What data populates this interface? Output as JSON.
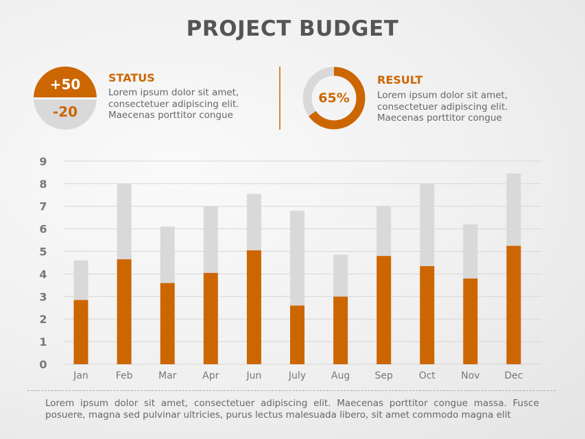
{
  "title": "PROJECT BUDGET",
  "status": {
    "positive": "+50",
    "negative": "-20",
    "heading": "STATUS",
    "text": [
      "Lorem ipsum dolor sit amet,",
      "consectetuer adipiscing elit.",
      "Maecenas porttitor congue"
    ]
  },
  "result": {
    "percent": 65,
    "label": "65%",
    "heading": "RESULT",
    "text": [
      "Lorem ipsum dolor sit amet,",
      "consectetuer adipiscing elit.",
      "Maecenas porttitor congue"
    ]
  },
  "colors": {
    "accent": "#cc6600",
    "secondary": "#d9d9d9"
  },
  "chart_data": {
    "type": "bar",
    "stacked": true,
    "categories": [
      "Jan",
      "Feb",
      "Mar",
      "Apr",
      "Jun",
      "July",
      "Aug",
      "Sep",
      "Oct",
      "Nov",
      "Dec"
    ],
    "series": [
      {
        "color": "#cc6600",
        "values": [
          2.85,
          4.65,
          3.6,
          4.05,
          5.05,
          2.6,
          3.0,
          4.8,
          4.35,
          3.8,
          5.25
        ]
      },
      {
        "color": "#d9d9d9",
        "values": [
          1.75,
          3.35,
          2.5,
          2.95,
          2.5,
          4.2,
          1.85,
          2.2,
          3.65,
          2.4,
          3.2
        ]
      }
    ],
    "ylim": [
      0,
      9
    ],
    "yticks": [
      "0",
      "1",
      "2",
      "3",
      "4",
      "5",
      "6",
      "7",
      "8",
      "9"
    ],
    "grid": true,
    "title": "",
    "xlabel": "",
    "ylabel": ""
  },
  "footer": "Lorem ipsum dolor sit amet, consectetuer adipiscing elit. Maecenas porttitor congue massa. Fusce posuere, magna sed pulvinar ultricies, purus lectus malesuada libero, sit amet commodo magna elit"
}
